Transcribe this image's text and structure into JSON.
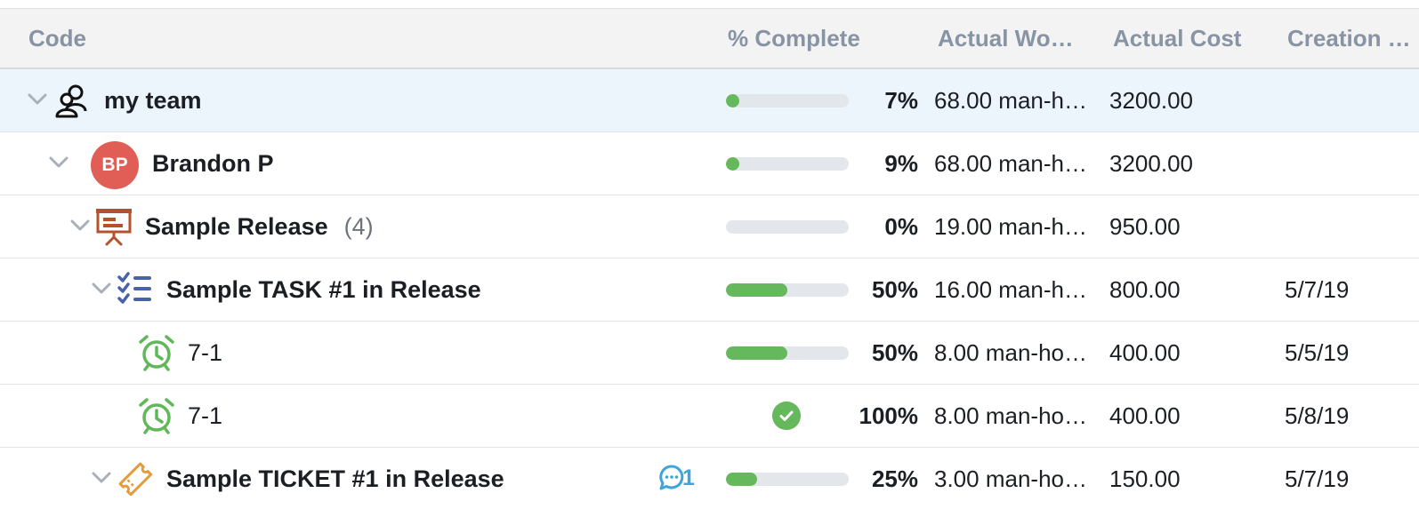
{
  "columns": {
    "code": "Code",
    "percent_complete": "% Complete",
    "actual_work": "Actual Wo…",
    "actual_cost": "Actual Cost",
    "creation": "Creation …"
  },
  "rows": [
    {
      "name": "my team",
      "progress": 7,
      "percent": "7%",
      "actual_work": "68.00 man-h…",
      "actual_cost": "3200.00",
      "creation": "",
      "icon": "team-icon"
    },
    {
      "name": "Brandon P",
      "avatar_initials": "BP",
      "progress": 9,
      "percent": "9%",
      "actual_work": "68.00 man-h…",
      "actual_cost": "3200.00",
      "creation": "",
      "icon": "avatar",
      "avatar_color": "#e05e55"
    },
    {
      "name": "Sample Release",
      "count": "(4)",
      "progress": 0,
      "percent": "0%",
      "actual_work": "19.00 man-h…",
      "actual_cost": "950.00",
      "creation": "",
      "icon": "release-icon"
    },
    {
      "name": "Sample TASK #1 in Release",
      "progress": 50,
      "percent": "50%",
      "actual_work": "16.00 man-h…",
      "actual_cost": "800.00",
      "creation": "5/7/19",
      "icon": "task-list-icon"
    },
    {
      "name": "7-1",
      "progress": 50,
      "percent": "50%",
      "actual_work": "8.00 man-ho…",
      "actual_cost": "400.00",
      "creation": "5/5/19",
      "icon": "alarm-clock-icon"
    },
    {
      "name": "7-1",
      "progress": 100,
      "percent": "100%",
      "actual_work": "8.00 man-ho…",
      "actual_cost": "400.00",
      "creation": "5/8/19",
      "icon": "alarm-clock-icon",
      "completed": true
    },
    {
      "name": "Sample TICKET #1 in Release",
      "progress": 25,
      "percent": "25%",
      "actual_work": "3.00 man-ho…",
      "actual_cost": "150.00",
      "creation": "5/7/19",
      "icon": "ticket-icon",
      "comments": "1"
    }
  ],
  "colors": {
    "progress_fill": "#66b85c",
    "progress_track": "#e3e6ea",
    "selected_row": "#ecf4fc",
    "comment": "#3da5d9",
    "release": "#b5512d",
    "task": "#4a62a8",
    "alarm": "#5fb85a",
    "ticket": "#e59b3a"
  }
}
